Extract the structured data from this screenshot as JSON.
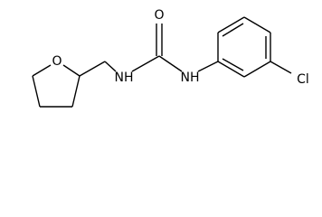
{
  "atoms": [
    {
      "label": "O"
    },
    {
      "label": "NH"
    },
    {
      "label": "O"
    },
    {
      "label": "NH"
    },
    {
      "label": "Cl"
    }
  ]
}
